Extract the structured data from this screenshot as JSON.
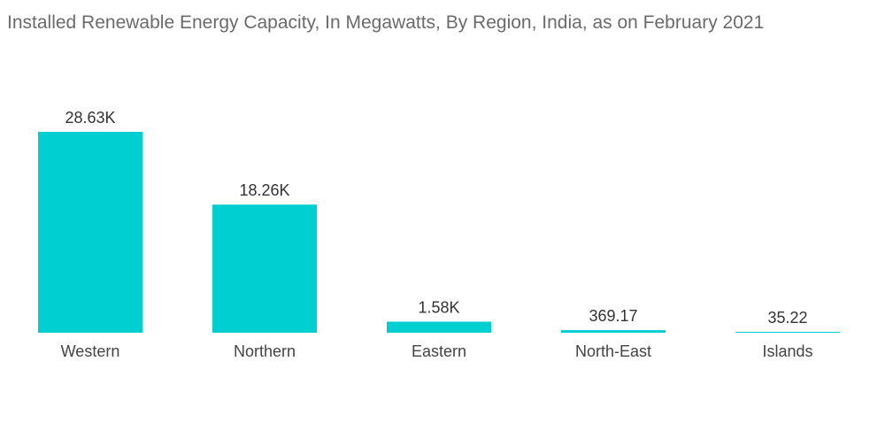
{
  "chart_data": {
    "type": "bar",
    "title": "Installed Renewable Energy Capacity, In Megawatts, By Region, India, as on February 2021",
    "categories": [
      "Western",
      "Northern",
      "Eastern",
      "North-East",
      "Islands"
    ],
    "values": [
      28630,
      18260,
      1580,
      369.17,
      35.22
    ],
    "data_labels": [
      "28.63K",
      "18.26K",
      "1.58K",
      "369.17",
      "35.22"
    ],
    "xlabel": "",
    "ylabel": "",
    "ylim": [
      0,
      28630
    ],
    "grid": false,
    "legend": "none",
    "bar_color": "#00cfd1"
  }
}
